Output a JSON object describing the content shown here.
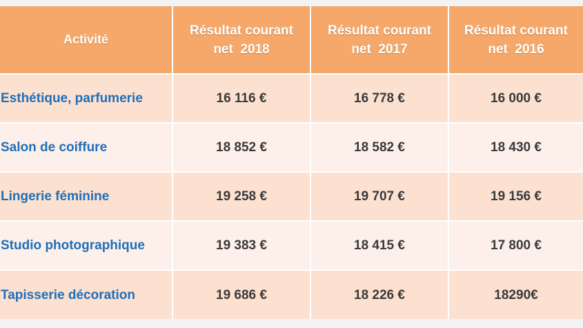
{
  "table": {
    "headers": [
      {
        "line1": "Activité",
        "line2": ""
      },
      {
        "line1": "Résultat courant",
        "line2": "net  2018"
      },
      {
        "line1": "Résultat courant",
        "line2": "net  2017"
      },
      {
        "line1": "Résultat courant",
        "line2": "net  2016"
      }
    ],
    "rows": [
      {
        "activity": "Esthétique, parfumerie",
        "y2018": "16 116 €",
        "y2017": "16 778 €",
        "y2016": "16 000 €"
      },
      {
        "activity": "Salon de coiffure",
        "y2018": "18 852 €",
        "y2017": "18 582 €",
        "y2016": "18 430 €"
      },
      {
        "activity": "Lingerie féminine",
        "y2018": "19 258 €",
        "y2017": "19 707 €",
        "y2016": "19 156 €"
      },
      {
        "activity": "Studio photographique",
        "y2018": "19 383 €",
        "y2017": "18 415 €",
        "y2016": "17 800 €"
      },
      {
        "activity": "Tapisserie décoration",
        "y2018": "19 686 €",
        "y2017": "18 226 €",
        "y2016": "18290€"
      }
    ]
  },
  "colors": {
    "header_bg": "#f6a86a",
    "row_odd": "#fce0d0",
    "row_even": "#fdf0ea",
    "activity_text": "#1f6fb8",
    "value_text": "#3a3a3a"
  }
}
